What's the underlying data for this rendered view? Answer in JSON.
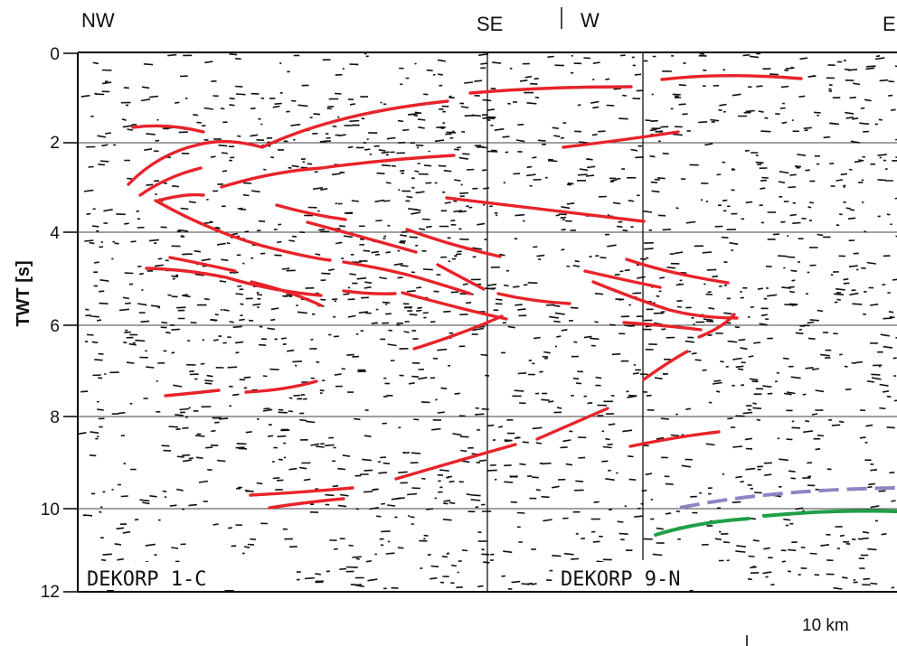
{
  "directions": {
    "nw": "NW",
    "se": "SE",
    "w": "W",
    "e": "E"
  },
  "y_axis": {
    "title": "TWT [s]",
    "ticks": [
      "0",
      "2",
      "4",
      "6",
      "8",
      "10",
      "12"
    ]
  },
  "profiles": {
    "left": "DEKORP   1-C",
    "right": "DEKORP   9-N"
  },
  "scale_bar": {
    "label": "10 km"
  },
  "colors": {
    "reflector": "#e8232a",
    "dashed_reflector": "#8a86c4",
    "green_reflector": "#1fa046",
    "noise": "#111111",
    "grid": "#000000"
  }
}
